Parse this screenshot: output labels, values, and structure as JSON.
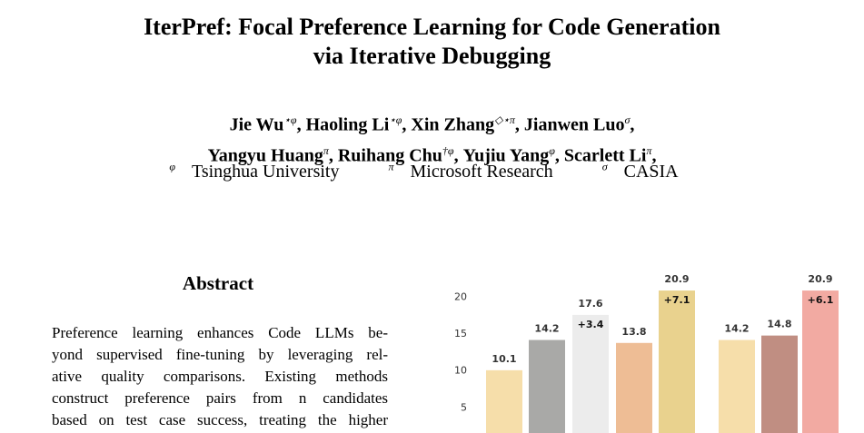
{
  "header": {
    "title_lines": [
      "IterPref: Focal Preference Learning for Code Generation",
      "via Iterative Debugging"
    ],
    "author_lines": [
      [
        {
          "name": "Jie Wu",
          "sup": "⋆φ",
          "sep": ","
        },
        {
          "name": "Haoling Li",
          "sup": "⋆φ",
          "sep": ","
        },
        {
          "name": "Xin Zhang",
          "sup": "◇⋆π",
          "sep": ","
        },
        {
          "name": "Jianwen Luo",
          "sup": "σ",
          "sep": ","
        }
      ],
      [
        {
          "name": "Yangyu Huang",
          "sup": "π",
          "sep": ","
        },
        {
          "name": "Ruihang Chu",
          "sup": "†φ",
          "sep": ","
        },
        {
          "name": "Yujiu Yang",
          "sup": "φ",
          "sep": ","
        },
        {
          "name": "Scarlett Li",
          "sup": "π",
          "sep": ","
        }
      ]
    ],
    "affiliations": [
      {
        "sup": "φ",
        "name": "Tsinghua University"
      },
      {
        "sup": "π",
        "name": "Microsoft Research"
      },
      {
        "sup": "σ",
        "name": "CASIA"
      }
    ]
  },
  "abstract": {
    "heading": "Abstract",
    "lines": [
      "Preference learning enhances Code LLMs be-",
      "yond supervised fine-tuning by leveraging rel-",
      "ative quality comparisons. Existing methods",
      "construct preference pairs from n candidates",
      "based on test case success, treating the higher"
    ]
  },
  "chart_data": {
    "type": "bar",
    "categories": [
      null,
      null,
      null,
      null,
      null,
      null,
      null,
      null
    ],
    "values": [
      10.1,
      14.2,
      17.6,
      13.8,
      20.9,
      14.2,
      14.8,
      20.9
    ],
    "value_annotations": [
      null,
      null,
      "+3.4",
      null,
      "+7.1",
      null,
      null,
      "+6.1"
    ],
    "colors": [
      "#f6deaa",
      "#a9a9a7",
      "#ececec",
      "#eebd95",
      "#e9d28e",
      "#f6deaa",
      "#c08e82",
      "#f2aaa2"
    ],
    "ylim": [
      0,
      22
    ],
    "yticks": [
      5,
      10,
      15,
      20
    ]
  }
}
